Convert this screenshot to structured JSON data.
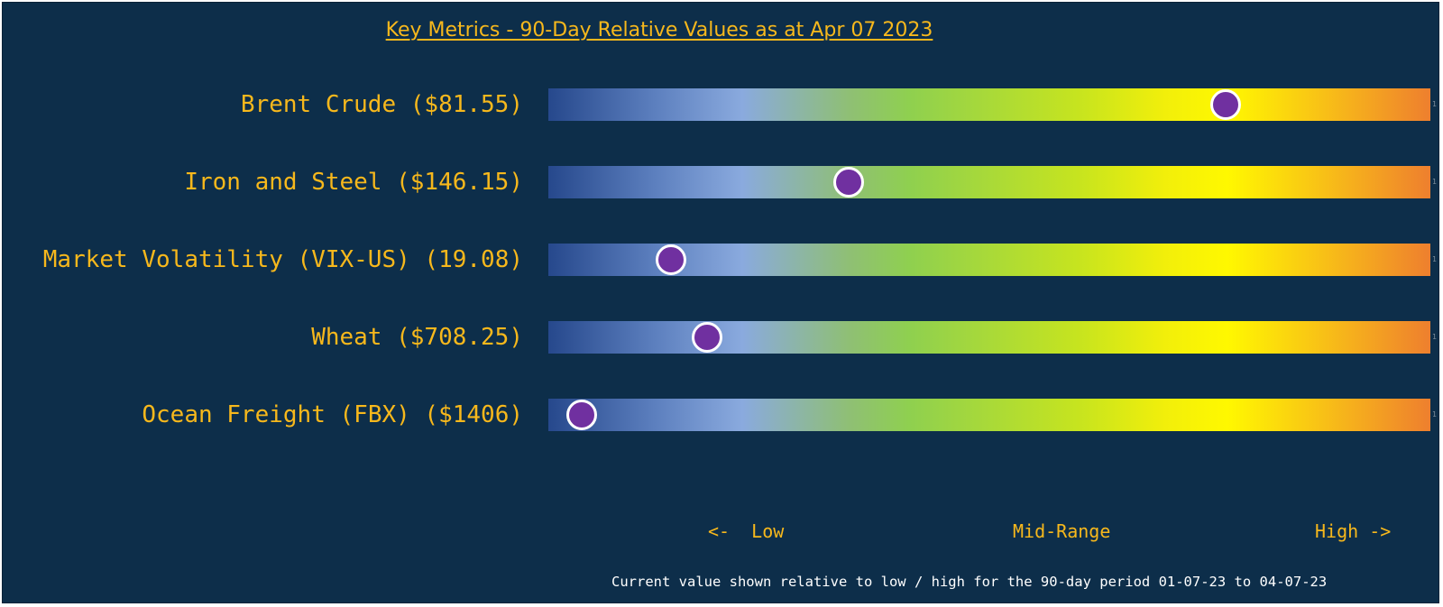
{
  "chart_data": {
    "type": "bar",
    "title": "Key Metrics - 90-Day Relative Values as at Apr 07 2023",
    "metrics": [
      {
        "label": "Brent Crude ($81.55)",
        "relative_position": 0.768
      },
      {
        "label": "Iron and Steel ($146.15)",
        "relative_position": 0.34
      },
      {
        "label": "Market Volatility (VIX-US) (19.08)",
        "relative_position": 0.139
      },
      {
        "label": "Wheat ($708.25)",
        "relative_position": 0.18
      },
      {
        "label": "Ocean Freight (FBX) ($1406)",
        "relative_position": 0.038
      }
    ],
    "scale_labels": {
      "low": "<-  Low",
      "mid": "Mid-Range",
      "high": "High ->"
    },
    "bar_end_marker": "1",
    "footnote": "Current value shown relative to low / high for the 90-day period 01-07-23 to 04-07-23",
    "colors": {
      "background": "#0d2e4a",
      "text": "#f7b81c",
      "marker": "#7030a0",
      "marker_outline": "#ffffff",
      "gradient_low": "#26488c",
      "gradient_mid": "#8fd04f",
      "gradient_high": "#ee7f2e"
    }
  }
}
